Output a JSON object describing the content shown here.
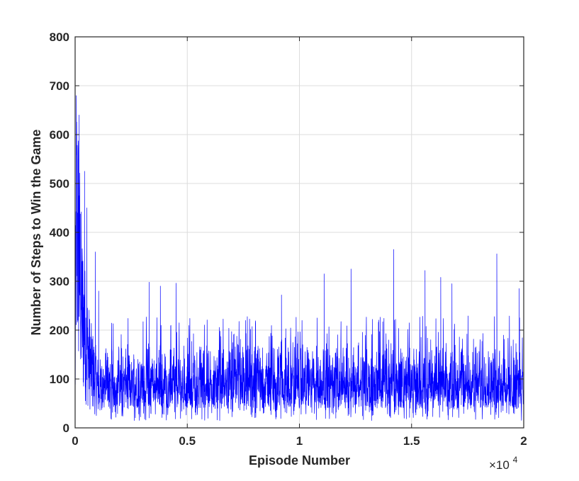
{
  "chart_data": {
    "type": "line",
    "title": "",
    "xlabel": "Episode Number",
    "ylabel": "Number of Steps to Win the Game",
    "xlim": [
      0,
      20000
    ],
    "ylim": [
      0,
      800
    ],
    "x_ticks": [
      0,
      5000,
      10000,
      15000,
      20000
    ],
    "x_tick_labels": [
      "0",
      "0.5",
      "1",
      "1.5",
      "2"
    ],
    "x_exponent_label": "×10",
    "x_exponent_power": "4",
    "y_ticks": [
      0,
      100,
      200,
      300,
      400,
      500,
      600,
      700,
      800
    ],
    "y_tick_labels": [
      "0",
      "100",
      "200",
      "300",
      "400",
      "500",
      "600",
      "700",
      "800"
    ],
    "grid": true,
    "series_color": "#0000ff",
    "series": [
      {
        "name": "",
        "description_points": [
          [
            0,
            120
          ],
          [
            50,
            760
          ],
          [
            100,
            690
          ],
          [
            150,
            650
          ],
          [
            200,
            560
          ],
          [
            300,
            420
          ],
          [
            400,
            360
          ],
          [
            500,
            300
          ],
          [
            700,
            220
          ],
          [
            1000,
            150
          ],
          [
            2000,
            95
          ],
          [
            5000,
            90
          ],
          [
            10000,
            92
          ],
          [
            15000,
            90
          ],
          [
            20000,
            95
          ]
        ],
        "spikes": [
          [
            180,
            640
          ],
          [
            420,
            525
          ],
          [
            520,
            450
          ],
          [
            900,
            360
          ],
          [
            1050,
            280
          ],
          [
            3300,
            298
          ],
          [
            3800,
            290
          ],
          [
            4500,
            296
          ],
          [
            9200,
            272
          ],
          [
            11100,
            315
          ],
          [
            12300,
            325
          ],
          [
            14200,
            365
          ],
          [
            15600,
            322
          ],
          [
            16300,
            308
          ],
          [
            16800,
            295
          ],
          [
            18800,
            356
          ],
          [
            19800,
            285
          ]
        ],
        "band_min": 15,
        "band_low": 40,
        "band_high": 180
      }
    ]
  }
}
